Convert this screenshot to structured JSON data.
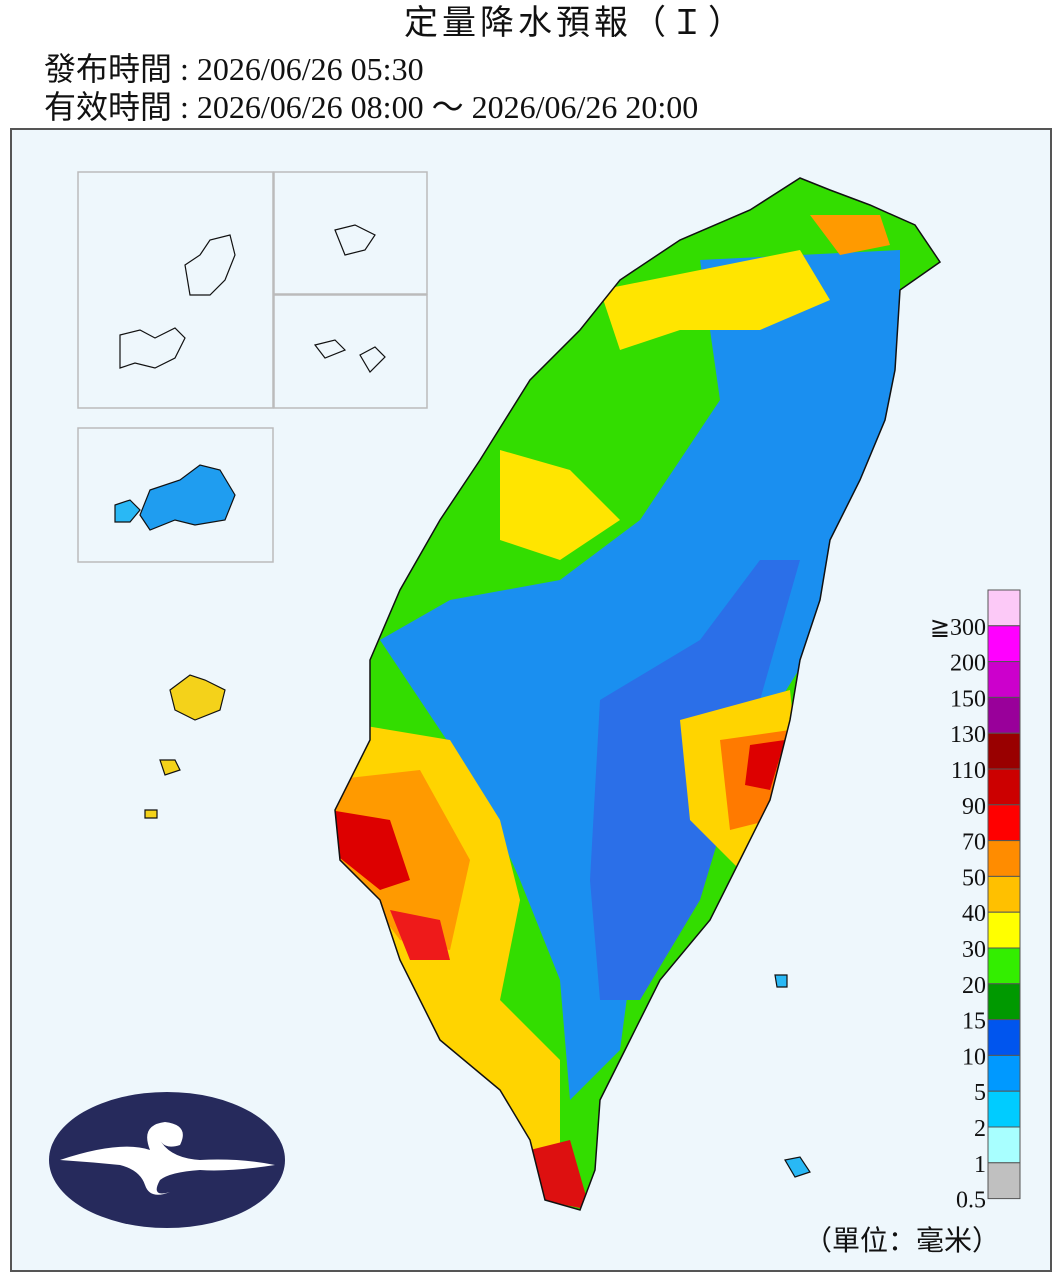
{
  "header": {
    "title": "定量降水預報（Ｉ）",
    "issued": "發布時間 : 2026/06/26 05:30",
    "valid": "有效時間 : 2026/06/26 08:00 ～ 2026/06/26 20:00"
  },
  "legend": {
    "items": [
      {
        "label": "≧300",
        "color": "#fcc9f7"
      },
      {
        "label": "200",
        "color": "#ff00ff"
      },
      {
        "label": "150",
        "color": "#cc00cc"
      },
      {
        "label": "130",
        "color": "#99009a"
      },
      {
        "label": "110",
        "color": "#990000"
      },
      {
        "label": "90",
        "color": "#cc0000"
      },
      {
        "label": "70",
        "color": "#ff0000"
      },
      {
        "label": "50",
        "color": "#ff8c00"
      },
      {
        "label": "40",
        "color": "#ffc000"
      },
      {
        "label": "30",
        "color": "#ffff00"
      },
      {
        "label": "20",
        "color": "#33ee00"
      },
      {
        "label": "15",
        "color": "#009900"
      },
      {
        "label": "10",
        "color": "#0055ee"
      },
      {
        "label": "5",
        "color": "#0099ff"
      },
      {
        "label": "2",
        "color": "#00ccff"
      },
      {
        "label": "1",
        "color": "#a8ffff"
      },
      {
        "label": "0.5",
        "color": "#c0c0c0"
      }
    ],
    "unit": "（單位：毫米）"
  }
}
